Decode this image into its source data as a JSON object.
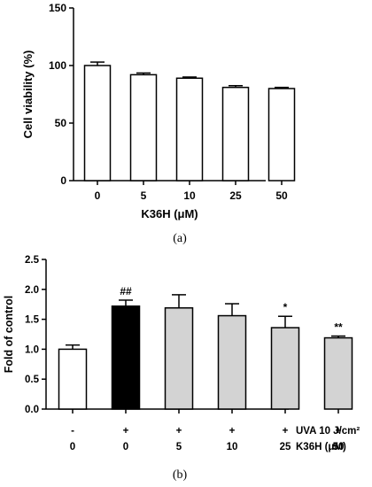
{
  "chart_data": [
    {
      "type": "bar",
      "caption": "(a)",
      "ylabel": "Cell viability (%)",
      "xlabel": "K36H (μM)",
      "ylim": [
        0,
        150
      ],
      "yticks": [
        "0",
        "50",
        "100",
        "150"
      ],
      "categories": [
        "0",
        "5",
        "10",
        "25",
        "50"
      ],
      "values": [
        100,
        92,
        89,
        81,
        80
      ],
      "errors": [
        3,
        1.5,
        1,
        1.5,
        1
      ],
      "bar_colors": [
        "#ffffff",
        "#ffffff",
        "#ffffff",
        "#ffffff",
        "#ffffff"
      ],
      "annotations": [
        "",
        "",
        "",
        "",
        ""
      ]
    },
    {
      "type": "bar",
      "caption": "(b)",
      "ylabel": "Fold of control",
      "ylim": [
        0,
        2.5
      ],
      "yticks": [
        "0.0",
        "0.5",
        "1.0",
        "1.5",
        "2.0",
        "2.5"
      ],
      "categories": [
        "0",
        "0",
        "5",
        "10",
        "25",
        "50"
      ],
      "uva_row": [
        "-",
        "+",
        "+",
        "+",
        "+",
        "+"
      ],
      "uva_label": "UVA 10 J/cm²",
      "xlabel": "K36H (μM)",
      "values": [
        1.0,
        1.72,
        1.69,
        1.56,
        1.36,
        1.19
      ],
      "errors": [
        0.07,
        0.1,
        0.22,
        0.2,
        0.19,
        0.03
      ],
      "bar_colors": [
        "#ffffff",
        "#000000",
        "#d3d3d3",
        "#d3d3d3",
        "#d3d3d3",
        "#d3d3d3"
      ],
      "annotations": [
        "",
        "##",
        "",
        "",
        "*",
        "**"
      ]
    }
  ]
}
